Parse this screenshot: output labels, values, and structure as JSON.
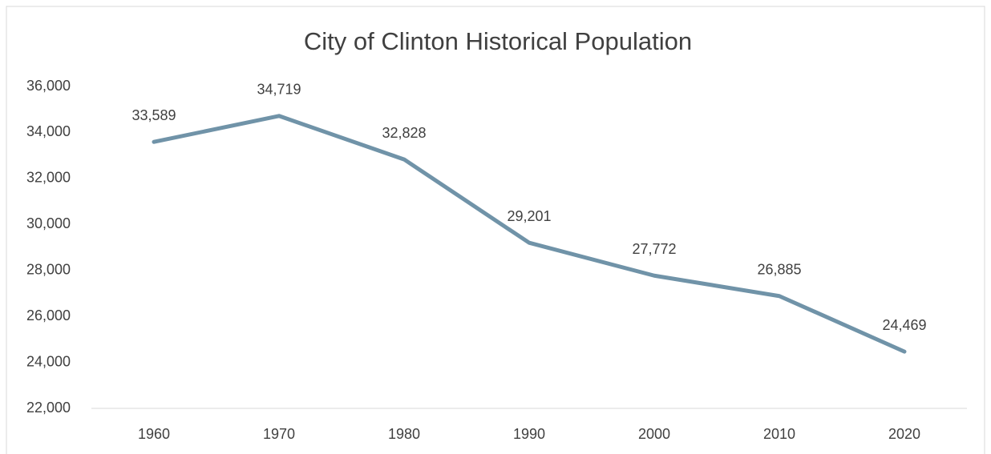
{
  "chart_data": {
    "type": "line",
    "title": "City of Clinton Historical Population",
    "categories": [
      "1960",
      "1970",
      "1980",
      "1990",
      "2000",
      "2010",
      "2020"
    ],
    "series": [
      {
        "name": "Population",
        "color": "#7093a8",
        "values": [
          33589,
          34719,
          32828,
          29201,
          27772,
          26885,
          24469
        ],
        "value_labels": [
          "33,589",
          "34,719",
          "32,828",
          "29,201",
          "27,772",
          "26,885",
          "24,469"
        ]
      }
    ],
    "ylim": [
      22000,
      36000
    ],
    "yticks": [
      {
        "value": 22000,
        "label": "22,000"
      },
      {
        "value": 24000,
        "label": "24,000"
      },
      {
        "value": 26000,
        "label": "26,000"
      },
      {
        "value": 28000,
        "label": "28,000"
      },
      {
        "value": 30000,
        "label": "30,000"
      },
      {
        "value": 32000,
        "label": "32,000"
      },
      {
        "value": 34000,
        "label": "34,000"
      },
      {
        "value": 36000,
        "label": "36,000"
      }
    ],
    "grid": false,
    "data_labels": true
  }
}
